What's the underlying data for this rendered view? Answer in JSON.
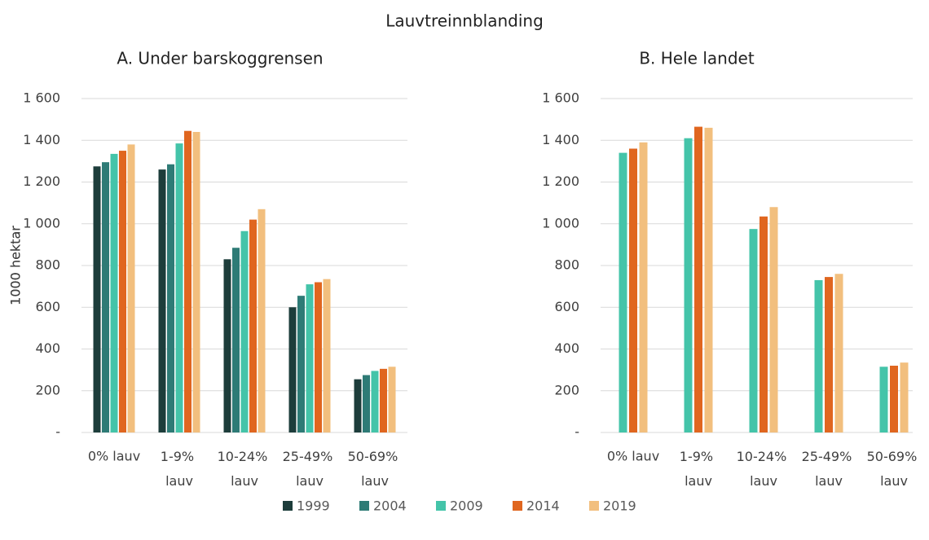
{
  "title": "Lauvtreinnblanding",
  "legend": "bottom",
  "chart_data": [
    {
      "type": "bar",
      "title": "A. Under barskoggrensen",
      "y_label": "1000 hektar",
      "categories": [
        "0% lauv",
        "1-9% lauv",
        "10-24% lauv",
        "25-49% lauv",
        "50-69% lauv"
      ],
      "series": [
        {
          "name": "1999",
          "color": "#1d3d3b",
          "values": [
            1275,
            1260,
            830,
            600,
            255
          ]
        },
        {
          "name": "2004",
          "color": "#2e7b76",
          "values": [
            1295,
            1285,
            885,
            655,
            275
          ]
        },
        {
          "name": "2009",
          "color": "#44c4a9",
          "values": [
            1335,
            1385,
            965,
            710,
            295
          ]
        },
        {
          "name": "2014",
          "color": "#e0661f",
          "values": [
            1350,
            1445,
            1020,
            720,
            305
          ]
        },
        {
          "name": "2019",
          "color": "#f2bf7e",
          "values": [
            1380,
            1440,
            1070,
            735,
            315
          ]
        }
      ],
      "ylim": [
        0,
        1600
      ],
      "yticks": [
        {
          "value": 0,
          "label": "-"
        },
        200,
        400,
        600,
        800,
        {
          "value": 1000,
          "label": "1 000"
        },
        {
          "value": 1200,
          "label": "1 200"
        },
        {
          "value": 1400,
          "label": "1 400"
        },
        {
          "value": 1600,
          "label": "1 600"
        }
      ],
      "grid": true
    },
    {
      "type": "bar",
      "title": "B. Hele landet",
      "y_label": "1000 hektar",
      "categories": [
        "0% lauv",
        "1-9% lauv",
        "10-24% lauv",
        "25-49% lauv",
        "50-69% lauv"
      ],
      "series": [
        {
          "color": "#44c4a9",
          "values": [
            1340,
            1410,
            975,
            730,
            315
          ]
        },
        {
          "color": "#e0661f",
          "values": [
            1360,
            1465,
            1035,
            745,
            320
          ]
        },
        {
          "color": "#f2bf7e",
          "values": [
            1390,
            1460,
            1080,
            760,
            335
          ]
        }
      ],
      "ylim": [
        0,
        1600
      ],
      "yticks": [
        {
          "value": 0,
          "label": "-"
        },
        200,
        400,
        600,
        800,
        {
          "value": 1000,
          "label": "1 000"
        },
        {
          "value": 1200,
          "label": "1 200"
        },
        {
          "value": 1400,
          "label": "1 400"
        },
        {
          "value": 1600,
          "label": "1 600"
        }
      ],
      "grid": true
    }
  ]
}
